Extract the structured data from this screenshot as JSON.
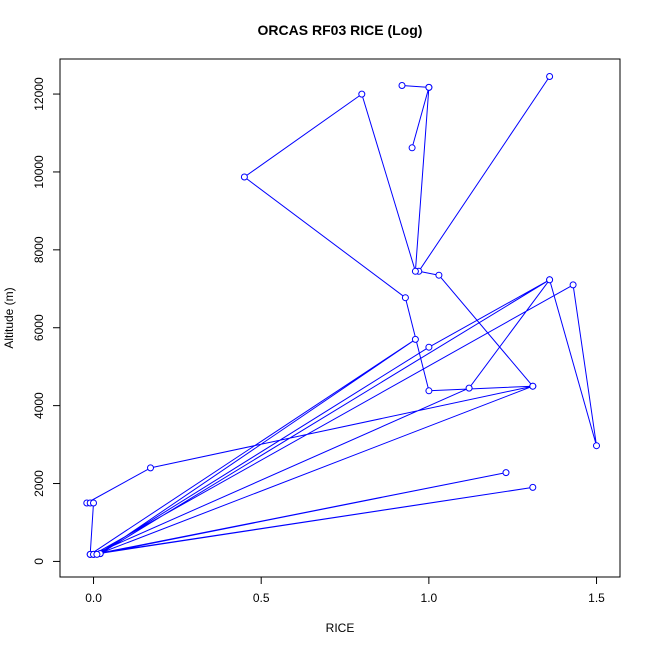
{
  "chart_data": {
    "type": "line",
    "title": "ORCAS RF03 RICE (Log)",
    "xlabel": "RICE",
    "ylabel": "Altitude (m)",
    "xlim": [
      -0.1,
      1.57
    ],
    "ylim": [
      -400,
      12900
    ],
    "x_ticks": [
      0.0,
      0.5,
      1.0,
      1.5
    ],
    "x_tick_labels": [
      "0.0",
      "0.5",
      "1.0",
      "1.5"
    ],
    "y_ticks": [
      0,
      2000,
      4000,
      6000,
      8000,
      10000,
      12000
    ],
    "y_tick_labels": [
      "0",
      "2000",
      "4000",
      "6000",
      "8000",
      "10000",
      "12000"
    ],
    "grid": false,
    "marker": "open-circle",
    "color": "#0000ff",
    "series": [
      {
        "x": [
          1.36,
          0.97,
          1.03,
          1.31,
          0.17,
          -0.02,
          -0.01,
          0.0,
          -0.01,
          0.02,
          1.36,
          1.5,
          1.43,
          0.0,
          1.31,
          -0.01,
          0.96,
          0.02,
          1.23,
          0.0,
          1.12,
          1.36,
          1.0,
          0.01,
          1.31,
          1.0,
          0.93,
          0.45,
          0.8,
          0.96,
          1.0,
          0.95,
          1.0,
          0.92
        ],
        "y": [
          12450,
          7450,
          7350,
          4500,
          2400,
          1500,
          1500,
          1500,
          180,
          200,
          7230,
          2970,
          7100,
          180,
          1900,
          180,
          5700,
          200,
          2280,
          180,
          4450,
          7230,
          5500,
          180,
          4500,
          4380,
          6770,
          9870,
          12000,
          7450,
          12170,
          10620,
          12170,
          12220
        ]
      }
    ]
  }
}
